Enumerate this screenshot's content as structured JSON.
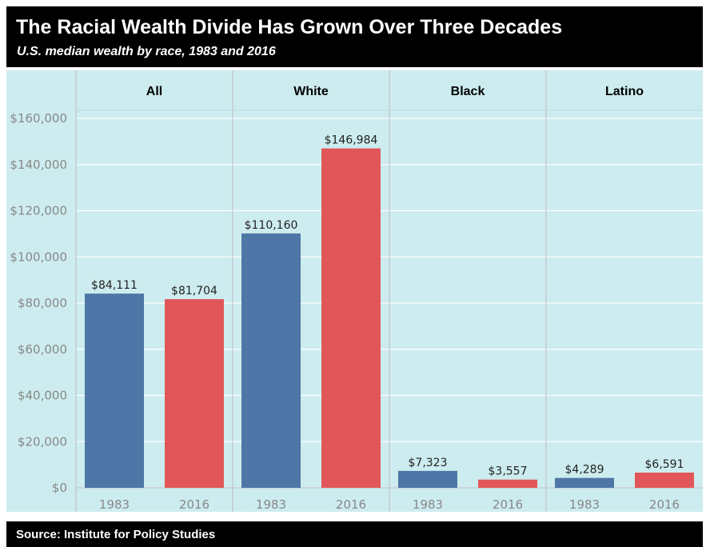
{
  "header": {
    "title": "The Racial Wealth Divide Has Grown Over Three Decades",
    "subtitle": "U.S. median wealth by race, 1983 and 2016"
  },
  "footer": {
    "source": "Source: Institute for Policy Studies"
  },
  "colors": {
    "bar_1983": "#4e76a6",
    "bar_2016": "#e15759",
    "panel_background": "#cdecef",
    "header_background": "#000000"
  },
  "chart_data": {
    "type": "bar",
    "title": "The Racial Wealth Divide Has Grown Over Three Decades",
    "subtitle": "U.S. median wealth by race, 1983 and 2016",
    "facets": [
      "All",
      "White",
      "Black",
      "Latino"
    ],
    "categories": [
      "1983",
      "2016"
    ],
    "series": [
      {
        "facet": "All",
        "values": [
          84111,
          81704
        ],
        "labels": [
          "$84,111",
          "$81,704"
        ]
      },
      {
        "facet": "White",
        "values": [
          110160,
          146984
        ],
        "labels": [
          "$110,160",
          "$146,984"
        ]
      },
      {
        "facet": "Black",
        "values": [
          7323,
          3557
        ],
        "labels": [
          "$7,323",
          "$3,557"
        ]
      },
      {
        "facet": "Latino",
        "values": [
          4289,
          6591
        ],
        "labels": [
          "$4,289",
          "$6,591"
        ]
      }
    ],
    "ylim": [
      0,
      160000
    ],
    "yticks": [
      0,
      20000,
      40000,
      60000,
      80000,
      100000,
      120000,
      140000,
      160000
    ],
    "ytick_labels": [
      "$0",
      "$20,000",
      "$40,000",
      "$60,000",
      "$80,000",
      "$100,000",
      "$120,000",
      "$140,000",
      "$160,000"
    ],
    "xlabel": "",
    "ylabel": "",
    "grid": true,
    "legend": "none"
  }
}
